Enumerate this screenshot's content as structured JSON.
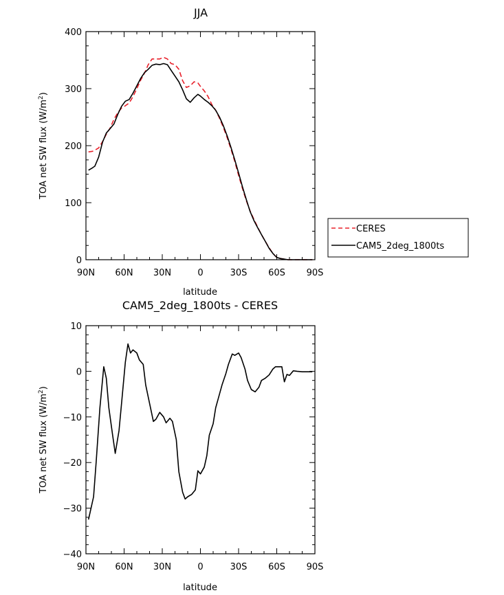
{
  "chart_data": [
    {
      "type": "line",
      "title": "JJA",
      "xlabel": "latitude",
      "ylabel": "TOA net SW flux (W/m²)",
      "ylabel_main": "TOA net SW flux (W/m",
      "ylabel_sup": "2",
      "ylabel_close": ")",
      "xlim": [
        90,
        -90
      ],
      "ylim": [
        0,
        400
      ],
      "xticks": [
        90,
        60,
        30,
        0,
        -30,
        -60,
        -90
      ],
      "xtick_labels": [
        "90N",
        "60N",
        "30N",
        "0",
        "30S",
        "60S",
        "90S"
      ],
      "yticks": [
        0,
        100,
        200,
        300,
        400
      ],
      "ytick_labels": [
        "0",
        "100",
        "200",
        "300",
        "400"
      ],
      "legend": "outside-right",
      "series": [
        {
          "name": "CERES",
          "color": "#e8202a",
          "dash": "dashed",
          "x": [
            88,
            85,
            83,
            80,
            77,
            74,
            71,
            68,
            65,
            62,
            59,
            56,
            53,
            50,
            47,
            44,
            41,
            38,
            35,
            32,
            29,
            26,
            23,
            20,
            17,
            14,
            11,
            8,
            5,
            2,
            0,
            -3,
            -6,
            -9,
            -12,
            -15,
            -18,
            -21,
            -24,
            -27,
            -30,
            -33,
            -36,
            -39,
            -42,
            -45,
            -48,
            -51,
            -54,
            -57,
            -60,
            -63,
            -66,
            -69,
            -72,
            -75,
            -78,
            -81,
            -84,
            -88
          ],
          "y": [
            189,
            190,
            192,
            196,
            207,
            220,
            231,
            246,
            258,
            266,
            270,
            275,
            286,
            300,
            315,
            327,
            342,
            352,
            352,
            352,
            355,
            352,
            344,
            342,
            334,
            314,
            302,
            305,
            312,
            310,
            304,
            296,
            286,
            272,
            262,
            248,
            232,
            214,
            194,
            172,
            148,
            125,
            104,
            86,
            71,
            57,
            44,
            32,
            21,
            11,
            4,
            2,
            1,
            0,
            0,
            0,
            0,
            0,
            0,
            0
          ]
        },
        {
          "name": "CAM5_2deg_1800ts",
          "color": "#000000",
          "dash": "solid",
          "x": [
            88,
            85,
            83,
            80,
            77,
            74,
            71,
            68,
            65,
            62,
            59,
            56,
            53,
            50,
            47,
            44,
            41,
            38,
            35,
            32,
            29,
            26,
            23,
            20,
            17,
            14,
            11,
            8,
            5,
            2,
            0,
            -3,
            -6,
            -9,
            -12,
            -15,
            -18,
            -21,
            -24,
            -27,
            -30,
            -33,
            -36,
            -39,
            -42,
            -45,
            -48,
            -51,
            -54,
            -57,
            -60,
            -63,
            -66,
            -69,
            -72,
            -75,
            -78,
            -81,
            -84,
            -88
          ],
          "y": [
            157,
            161,
            164,
            180,
            206,
            222,
            230,
            238,
            255,
            269,
            278,
            281,
            292,
            305,
            318,
            328,
            334,
            341,
            343,
            342,
            344,
            342,
            332,
            322,
            312,
            298,
            282,
            276,
            284,
            290,
            287,
            281,
            276,
            270,
            262,
            250,
            235,
            217,
            197,
            175,
            152,
            128,
            106,
            85,
            69,
            56,
            44,
            32,
            20,
            11,
            4,
            2,
            1,
            0,
            0,
            0,
            0,
            0,
            0,
            0
          ]
        }
      ]
    },
    {
      "type": "line",
      "title": "CAM5_2deg_1800ts - CERES",
      "xlabel": "latitude",
      "ylabel": "TOA net SW flux (W/m²)",
      "ylabel_main": "TOA net SW flux (W/m",
      "ylabel_sup": "2",
      "ylabel_close": ")",
      "xlim": [
        90,
        -90
      ],
      "ylim": [
        -40,
        10
      ],
      "xticks": [
        90,
        60,
        30,
        0,
        -30,
        -60,
        -90
      ],
      "xtick_labels": [
        "90N",
        "60N",
        "30N",
        "0",
        "30S",
        "60S",
        "90S"
      ],
      "yticks": [
        -40,
        -30,
        -20,
        -10,
        0,
        10
      ],
      "ytick_labels": [
        "−40",
        "−30",
        "−20",
        "−10",
        "0",
        "10"
      ],
      "series": [
        {
          "color": "#000000",
          "dash": "solid",
          "x": [
            88,
            84,
            82,
            79,
            76,
            74,
            72,
            69,
            67,
            64,
            62,
            59,
            57,
            55,
            53,
            50,
            48,
            45,
            43,
            40,
            37,
            35,
            32,
            29,
            27,
            24,
            22,
            19,
            17,
            14,
            12,
            10,
            7,
            4,
            2,
            0,
            -3,
            -5,
            -7,
            -10,
            -12,
            -14,
            -17,
            -20,
            -22,
            -25,
            -27,
            -30,
            -32,
            -35,
            -37,
            -40,
            -43,
            -46,
            -48,
            -51,
            -54,
            -57,
            -59,
            -62,
            -64,
            -66,
            -68,
            -70,
            -73,
            -76,
            -80,
            -84,
            -88
          ],
          "y": [
            -32.5,
            -27.5,
            -20,
            -8,
            1,
            -1.5,
            -8,
            -14,
            -18,
            -13,
            -7,
            2,
            6,
            4,
            4.7,
            4,
            2.5,
            1.5,
            -3,
            -7,
            -11,
            -10.5,
            -9,
            -10,
            -11.3,
            -10.3,
            -11,
            -15,
            -22,
            -26.5,
            -28,
            -27.5,
            -27,
            -26,
            -21.8,
            -22.5,
            -21,
            -18.5,
            -14,
            -11.5,
            -8,
            -6,
            -3,
            -0.5,
            1.5,
            3.8,
            3.5,
            4,
            3,
            0.5,
            -2,
            -4,
            -4.5,
            -3.5,
            -2,
            -1.5,
            -0.8,
            0.5,
            1,
            1,
            1,
            -2.3,
            -0.7,
            -0.9,
            0.1,
            0,
            -0.1,
            -0.1,
            -0.1
          ]
        }
      ]
    }
  ]
}
